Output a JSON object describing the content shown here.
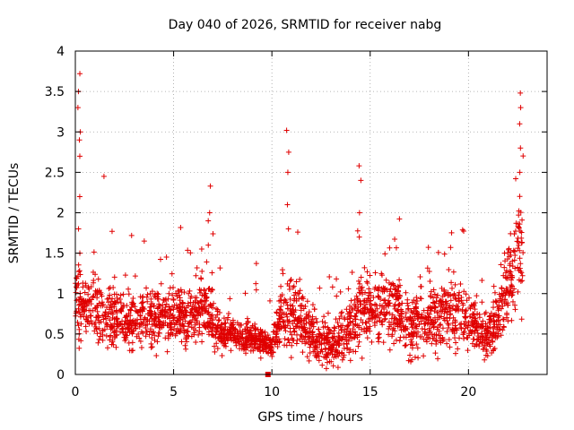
{
  "chart_data": {
    "type": "scatter",
    "title": "Day 040 of 2026, SRMTID for receiver nabg",
    "xlabel": "GPS time / hours",
    "ylabel": "SRMTID / TECUs",
    "xlim": [
      0,
      24
    ],
    "ylim": [
      0,
      4
    ],
    "x_ticks": [
      0,
      5,
      10,
      15,
      20
    ],
    "x_tick_labels": [
      "0",
      "5",
      "10",
      "15",
      "20"
    ],
    "y_ticks": [
      0,
      0.5,
      1,
      1.5,
      2,
      2.5,
      3,
      3.5,
      4
    ],
    "y_tick_labels": [
      "0",
      "0.5",
      "1",
      "1.5",
      "2",
      "2.5",
      "3",
      "3.5",
      "4"
    ],
    "grid": true,
    "marker": "plus",
    "color": "#e00000",
    "profile": {
      "hours": [
        0,
        0.5,
        1,
        1.5,
        2,
        2.5,
        3,
        3.5,
        4,
        4.5,
        5,
        5.5,
        6,
        6.5,
        7,
        7.5,
        8,
        8.5,
        9,
        9.5,
        10,
        10.5,
        11,
        11.5,
        12,
        12.5,
        13,
        13.5,
        14,
        14.5,
        15,
        15.5,
        16,
        16.5,
        17,
        17.5,
        18,
        18.5,
        19,
        19.5,
        20,
        20.5,
        21,
        21.5,
        22,
        22.5,
        22.8
      ],
      "median": [
        0.9,
        0.85,
        0.8,
        0.7,
        0.7,
        0.65,
        0.65,
        0.7,
        0.7,
        0.75,
        0.7,
        0.7,
        0.75,
        0.8,
        0.7,
        0.5,
        0.5,
        0.45,
        0.45,
        0.4,
        0.35,
        0.75,
        0.75,
        0.7,
        0.5,
        0.4,
        0.35,
        0.4,
        0.6,
        0.75,
        0.75,
        0.8,
        0.8,
        0.75,
        0.6,
        0.7,
        0.65,
        0.7,
        0.7,
        0.75,
        0.6,
        0.55,
        0.5,
        0.65,
        1.1,
        1.5,
        1.7
      ],
      "spread": [
        0.45,
        0.4,
        0.35,
        0.35,
        0.3,
        0.3,
        0.3,
        0.3,
        0.3,
        0.3,
        0.3,
        0.3,
        0.3,
        0.35,
        0.3,
        0.2,
        0.15,
        0.15,
        0.15,
        0.15,
        0.15,
        0.4,
        0.4,
        0.35,
        0.25,
        0.25,
        0.25,
        0.3,
        0.35,
        0.35,
        0.35,
        0.35,
        0.35,
        0.35,
        0.3,
        0.35,
        0.35,
        0.35,
        0.35,
        0.35,
        0.3,
        0.3,
        0.25,
        0.3,
        0.45,
        0.6,
        0.7
      ],
      "samples_per_hour": 110
    },
    "spikes": [
      {
        "x": 0.2,
        "y": [
          1.5,
          1.8,
          2.2,
          2.7,
          2.9,
          3.0,
          3.3,
          3.5,
          3.72
        ]
      },
      {
        "x": 1.4,
        "y": [
          2.45
        ]
      },
      {
        "x": 6.8,
        "y": [
          1.6,
          1.9,
          2.0,
          2.33
        ]
      },
      {
        "x": 10.8,
        "y": [
          1.8,
          2.1,
          2.5,
          2.75,
          3.02
        ]
      },
      {
        "x": 14.5,
        "y": [
          1.7,
          2.0,
          2.4,
          2.58
        ]
      },
      {
        "x": 22.6,
        "y": [
          2.5,
          2.8,
          3.1,
          3.3,
          3.48
        ]
      }
    ],
    "squares": [
      {
        "x": 9.8,
        "y": 0.0
      }
    ]
  }
}
